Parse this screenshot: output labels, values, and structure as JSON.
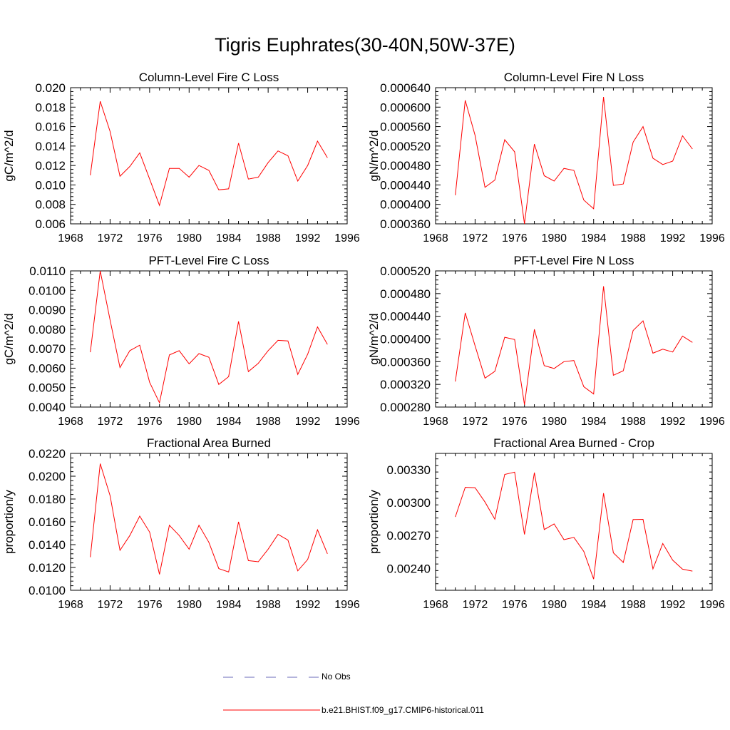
{
  "title": "Tigris Euphrates(30-40N,50W-37E)",
  "colors": {
    "model_line": "#ff0000",
    "obs_line": "#6a6ab8",
    "axis": "#000000"
  },
  "legend": [
    {
      "label": "No Obs",
      "style": "dashed",
      "color": "#6a6ab8"
    },
    {
      "label": "b.e21.BHIST.f09_g17.CMIP6-historical.011",
      "style": "solid",
      "color": "#ff0000"
    }
  ],
  "chart_data": [
    {
      "type": "line",
      "title": "Column-Level Fire C Loss",
      "ylabel": "gC/m^2/d",
      "xlim": [
        1968,
        1996
      ],
      "xticks": [
        "1968",
        "1972",
        "1976",
        "1980",
        "1984",
        "1988",
        "1992",
        "1996"
      ],
      "ylim": [
        0.006,
        0.02
      ],
      "yticks": [
        "0.006",
        "0.008",
        "0.010",
        "0.012",
        "0.014",
        "0.016",
        "0.018",
        "0.020"
      ],
      "series": [
        {
          "x": [
            1970,
            1971,
            1972,
            1973,
            1974,
            1975,
            1976,
            1977,
            1978,
            1979,
            1980,
            1981,
            1982,
            1983,
            1984,
            1985,
            1986,
            1987,
            1988,
            1989,
            1990,
            1991,
            1992,
            1993,
            1994
          ],
          "values": [
            0.011,
            0.0186,
            0.0155,
            0.0109,
            0.0119,
            0.0133,
            0.0106,
            0.0079,
            0.0117,
            0.0117,
            0.0108,
            0.012,
            0.0115,
            0.0095,
            0.0096,
            0.0143,
            0.0106,
            0.0108,
            0.0123,
            0.0135,
            0.013,
            0.0104,
            0.012,
            0.0145,
            0.0128
          ]
        }
      ]
    },
    {
      "type": "line",
      "title": "Column-Level Fire N Loss",
      "ylabel": "gN/m^2/d",
      "xlim": [
        1968,
        1996
      ],
      "xticks": [
        "1968",
        "1972",
        "1976",
        "1980",
        "1984",
        "1988",
        "1992",
        "1996"
      ],
      "ylim": [
        0.00036,
        0.00064
      ],
      "yticks": [
        "0.000360",
        "0.000400",
        "0.000440",
        "0.000480",
        "0.000520",
        "0.000560",
        "0.000600",
        "0.000640"
      ],
      "series": [
        {
          "x": [
            1970,
            1971,
            1972,
            1973,
            1974,
            1975,
            1976,
            1977,
            1978,
            1979,
            1980,
            1981,
            1982,
            1983,
            1984,
            1985,
            1986,
            1987,
            1988,
            1989,
            1990,
            1991,
            1992,
            1993,
            1994
          ],
          "values": [
            0.000419,
            0.000614,
            0.000542,
            0.000435,
            0.00045,
            0.000533,
            0.000508,
            0.00036,
            0.000524,
            0.000459,
            0.000448,
            0.000474,
            0.00047,
            0.000409,
            0.000391,
            0.000621,
            0.000439,
            0.000442,
            0.000528,
            0.00056,
            0.000495,
            0.000482,
            0.000489,
            0.000541,
            0.000514
          ]
        }
      ]
    },
    {
      "type": "line",
      "title": "PFT-Level Fire C Loss",
      "ylabel": "gC/m^2/d",
      "xlim": [
        1968,
        1996
      ],
      "xticks": [
        "1968",
        "1972",
        "1976",
        "1980",
        "1984",
        "1988",
        "1992",
        "1996"
      ],
      "ylim": [
        0.004,
        0.011
      ],
      "yticks": [
        "0.0040",
        "0.0050",
        "0.0060",
        "0.0070",
        "0.0080",
        "0.0090",
        "0.0100",
        "0.0110"
      ],
      "series": [
        {
          "x": [
            1970,
            1971,
            1972,
            1973,
            1974,
            1975,
            1976,
            1977,
            1978,
            1979,
            1980,
            1981,
            1982,
            1983,
            1984,
            1985,
            1986,
            1987,
            1988,
            1989,
            1990,
            1991,
            1992,
            1993,
            1994
          ],
          "values": [
            0.00682,
            0.011,
            0.00848,
            0.00603,
            0.0069,
            0.00718,
            0.00527,
            0.00422,
            0.00668,
            0.0069,
            0.00622,
            0.00675,
            0.00656,
            0.00516,
            0.00556,
            0.0084,
            0.00582,
            0.00625,
            0.0069,
            0.00743,
            0.0074,
            0.00568,
            0.00672,
            0.00812,
            0.00722
          ]
        }
      ]
    },
    {
      "type": "line",
      "title": "PFT-Level Fire N Loss",
      "ylabel": "gN/m^2/d",
      "xlim": [
        1968,
        1996
      ],
      "xticks": [
        "1968",
        "1972",
        "1976",
        "1980",
        "1984",
        "1988",
        "1992",
        "1996"
      ],
      "ylim": [
        0.00028,
        0.00052
      ],
      "yticks": [
        "0.000280",
        "0.000320",
        "0.000360",
        "0.000400",
        "0.000440",
        "0.000480",
        "0.000520"
      ],
      "series": [
        {
          "x": [
            1970,
            1971,
            1972,
            1973,
            1974,
            1975,
            1976,
            1977,
            1978,
            1979,
            1980,
            1981,
            1982,
            1983,
            1984,
            1985,
            1986,
            1987,
            1988,
            1989,
            1990,
            1991,
            1992,
            1993,
            1994
          ],
          "values": [
            0.000325,
            0.000446,
            0.000388,
            0.000331,
            0.000343,
            0.000403,
            0.000399,
            0.000284,
            0.000417,
            0.000353,
            0.000348,
            0.00036,
            0.000362,
            0.000316,
            0.000303,
            0.000493,
            0.000336,
            0.000344,
            0.000415,
            0.000432,
            0.000375,
            0.000382,
            0.000377,
            0.000405,
            0.000394
          ]
        }
      ]
    },
    {
      "type": "line",
      "title": "Fractional Area Burned",
      "ylabel": "proportion/y",
      "xlim": [
        1968,
        1996
      ],
      "xticks": [
        "1968",
        "1972",
        "1976",
        "1980",
        "1984",
        "1988",
        "1992",
        "1996"
      ],
      "ylim": [
        0.01,
        0.022
      ],
      "yticks": [
        "0.0100",
        "0.0120",
        "0.0140",
        "0.0160",
        "0.0180",
        "0.0200",
        "0.0220"
      ],
      "series": [
        {
          "x": [
            1970,
            1971,
            1972,
            1973,
            1974,
            1975,
            1976,
            1977,
            1978,
            1979,
            1980,
            1981,
            1982,
            1983,
            1984,
            1985,
            1986,
            1987,
            1988,
            1989,
            1990,
            1991,
            1992,
            1993,
            1994
          ],
          "values": [
            0.0129,
            0.0211,
            0.0183,
            0.0135,
            0.0148,
            0.0165,
            0.0151,
            0.0114,
            0.0157,
            0.0148,
            0.0136,
            0.0157,
            0.0142,
            0.0119,
            0.0116,
            0.016,
            0.0126,
            0.0125,
            0.0136,
            0.0149,
            0.0144,
            0.0117,
            0.0127,
            0.0153,
            0.0132
          ]
        }
      ]
    },
    {
      "type": "line",
      "title": "Fractional Area Burned - Crop",
      "ylabel": "proportion/y",
      "xlim": [
        1968,
        1996
      ],
      "xticks": [
        "1968",
        "1972",
        "1976",
        "1980",
        "1984",
        "1988",
        "1992",
        "1996"
      ],
      "ylim": [
        0.0022,
        0.00345
      ],
      "yticks": [
        "0.00240",
        "0.00270",
        "0.00300",
        "0.00330"
      ],
      "ytick_values": [
        0.0024,
        0.0027,
        0.003,
        0.0033
      ],
      "series": [
        {
          "x": [
            1970,
            1971,
            1972,
            1973,
            1974,
            1975,
            1976,
            1977,
            1978,
            1979,
            1980,
            1981,
            1982,
            1983,
            1984,
            1985,
            1986,
            1987,
            1988,
            1989,
            1990,
            1991,
            1992,
            1993,
            1994
          ],
          "values": [
            0.00287,
            0.00314,
            0.003137,
            0.003006,
            0.00285,
            0.003258,
            0.003279,
            0.00271,
            0.003274,
            0.002755,
            0.002806,
            0.002662,
            0.002683,
            0.002555,
            0.002302,
            0.003087,
            0.002542,
            0.002454,
            0.002846,
            0.002848,
            0.002395,
            0.002627,
            0.002475,
            0.002393,
            0.002375
          ]
        }
      ]
    }
  ]
}
